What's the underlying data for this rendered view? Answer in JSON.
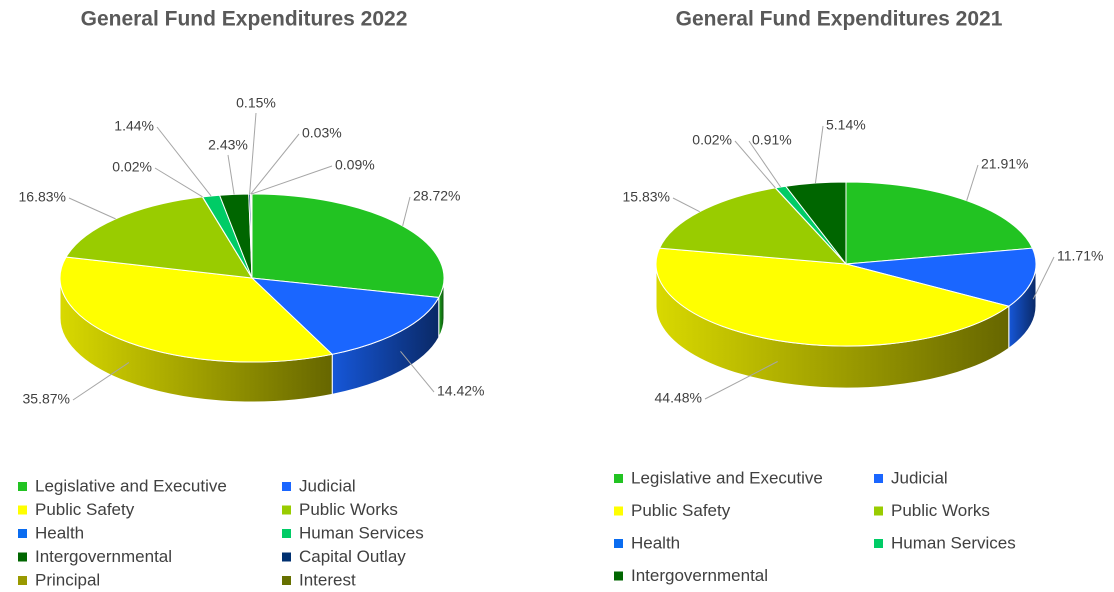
{
  "chart_data": [
    {
      "type": "pie3d",
      "title": "General Fund Expenditures 2022",
      "categories": [
        "Legislative and Executive",
        "Judicial",
        "Public Safety",
        "Public Works",
        "Health",
        "Human Services",
        "Intergovernmental",
        "Capital Outlay",
        "Principal",
        "Interest"
      ],
      "values": [
        28.72,
        14.42,
        35.87,
        16.83,
        0.02,
        1.44,
        2.43,
        0.15,
        0.03,
        0.09
      ],
      "value_labels": [
        "28.72%",
        "14.42%",
        "35.87%",
        "16.83%",
        "0.02%",
        "1.44%",
        "2.43%",
        "0.15%",
        "0.03%",
        "0.09%"
      ],
      "colors": [
        "#22c322",
        "#1a66ff",
        "#ffff00",
        "#99cc00",
        "#0a6cf0",
        "#00cc66",
        "#006600",
        "#003070",
        "#999900",
        "#667000"
      ],
      "legend": "bottom"
    },
    {
      "type": "pie3d",
      "title": "General Fund Expenditures 2021",
      "categories": [
        "Legislative and Executive",
        "Judicial",
        "Public Safety",
        "Public Works",
        "Health",
        "Human Services",
        "Intergovernmental"
      ],
      "values": [
        21.91,
        11.71,
        44.48,
        15.83,
        0.02,
        0.91,
        5.14
      ],
      "value_labels": [
        "21.91%",
        "11.71%",
        "44.48%",
        "15.83%",
        "0.02%",
        "0.91%",
        "5.14%"
      ],
      "colors": [
        "#22c322",
        "#1a66ff",
        "#ffff00",
        "#99cc00",
        "#0a6cf0",
        "#00cc66",
        "#006600"
      ],
      "legend": "bottom"
    }
  ]
}
